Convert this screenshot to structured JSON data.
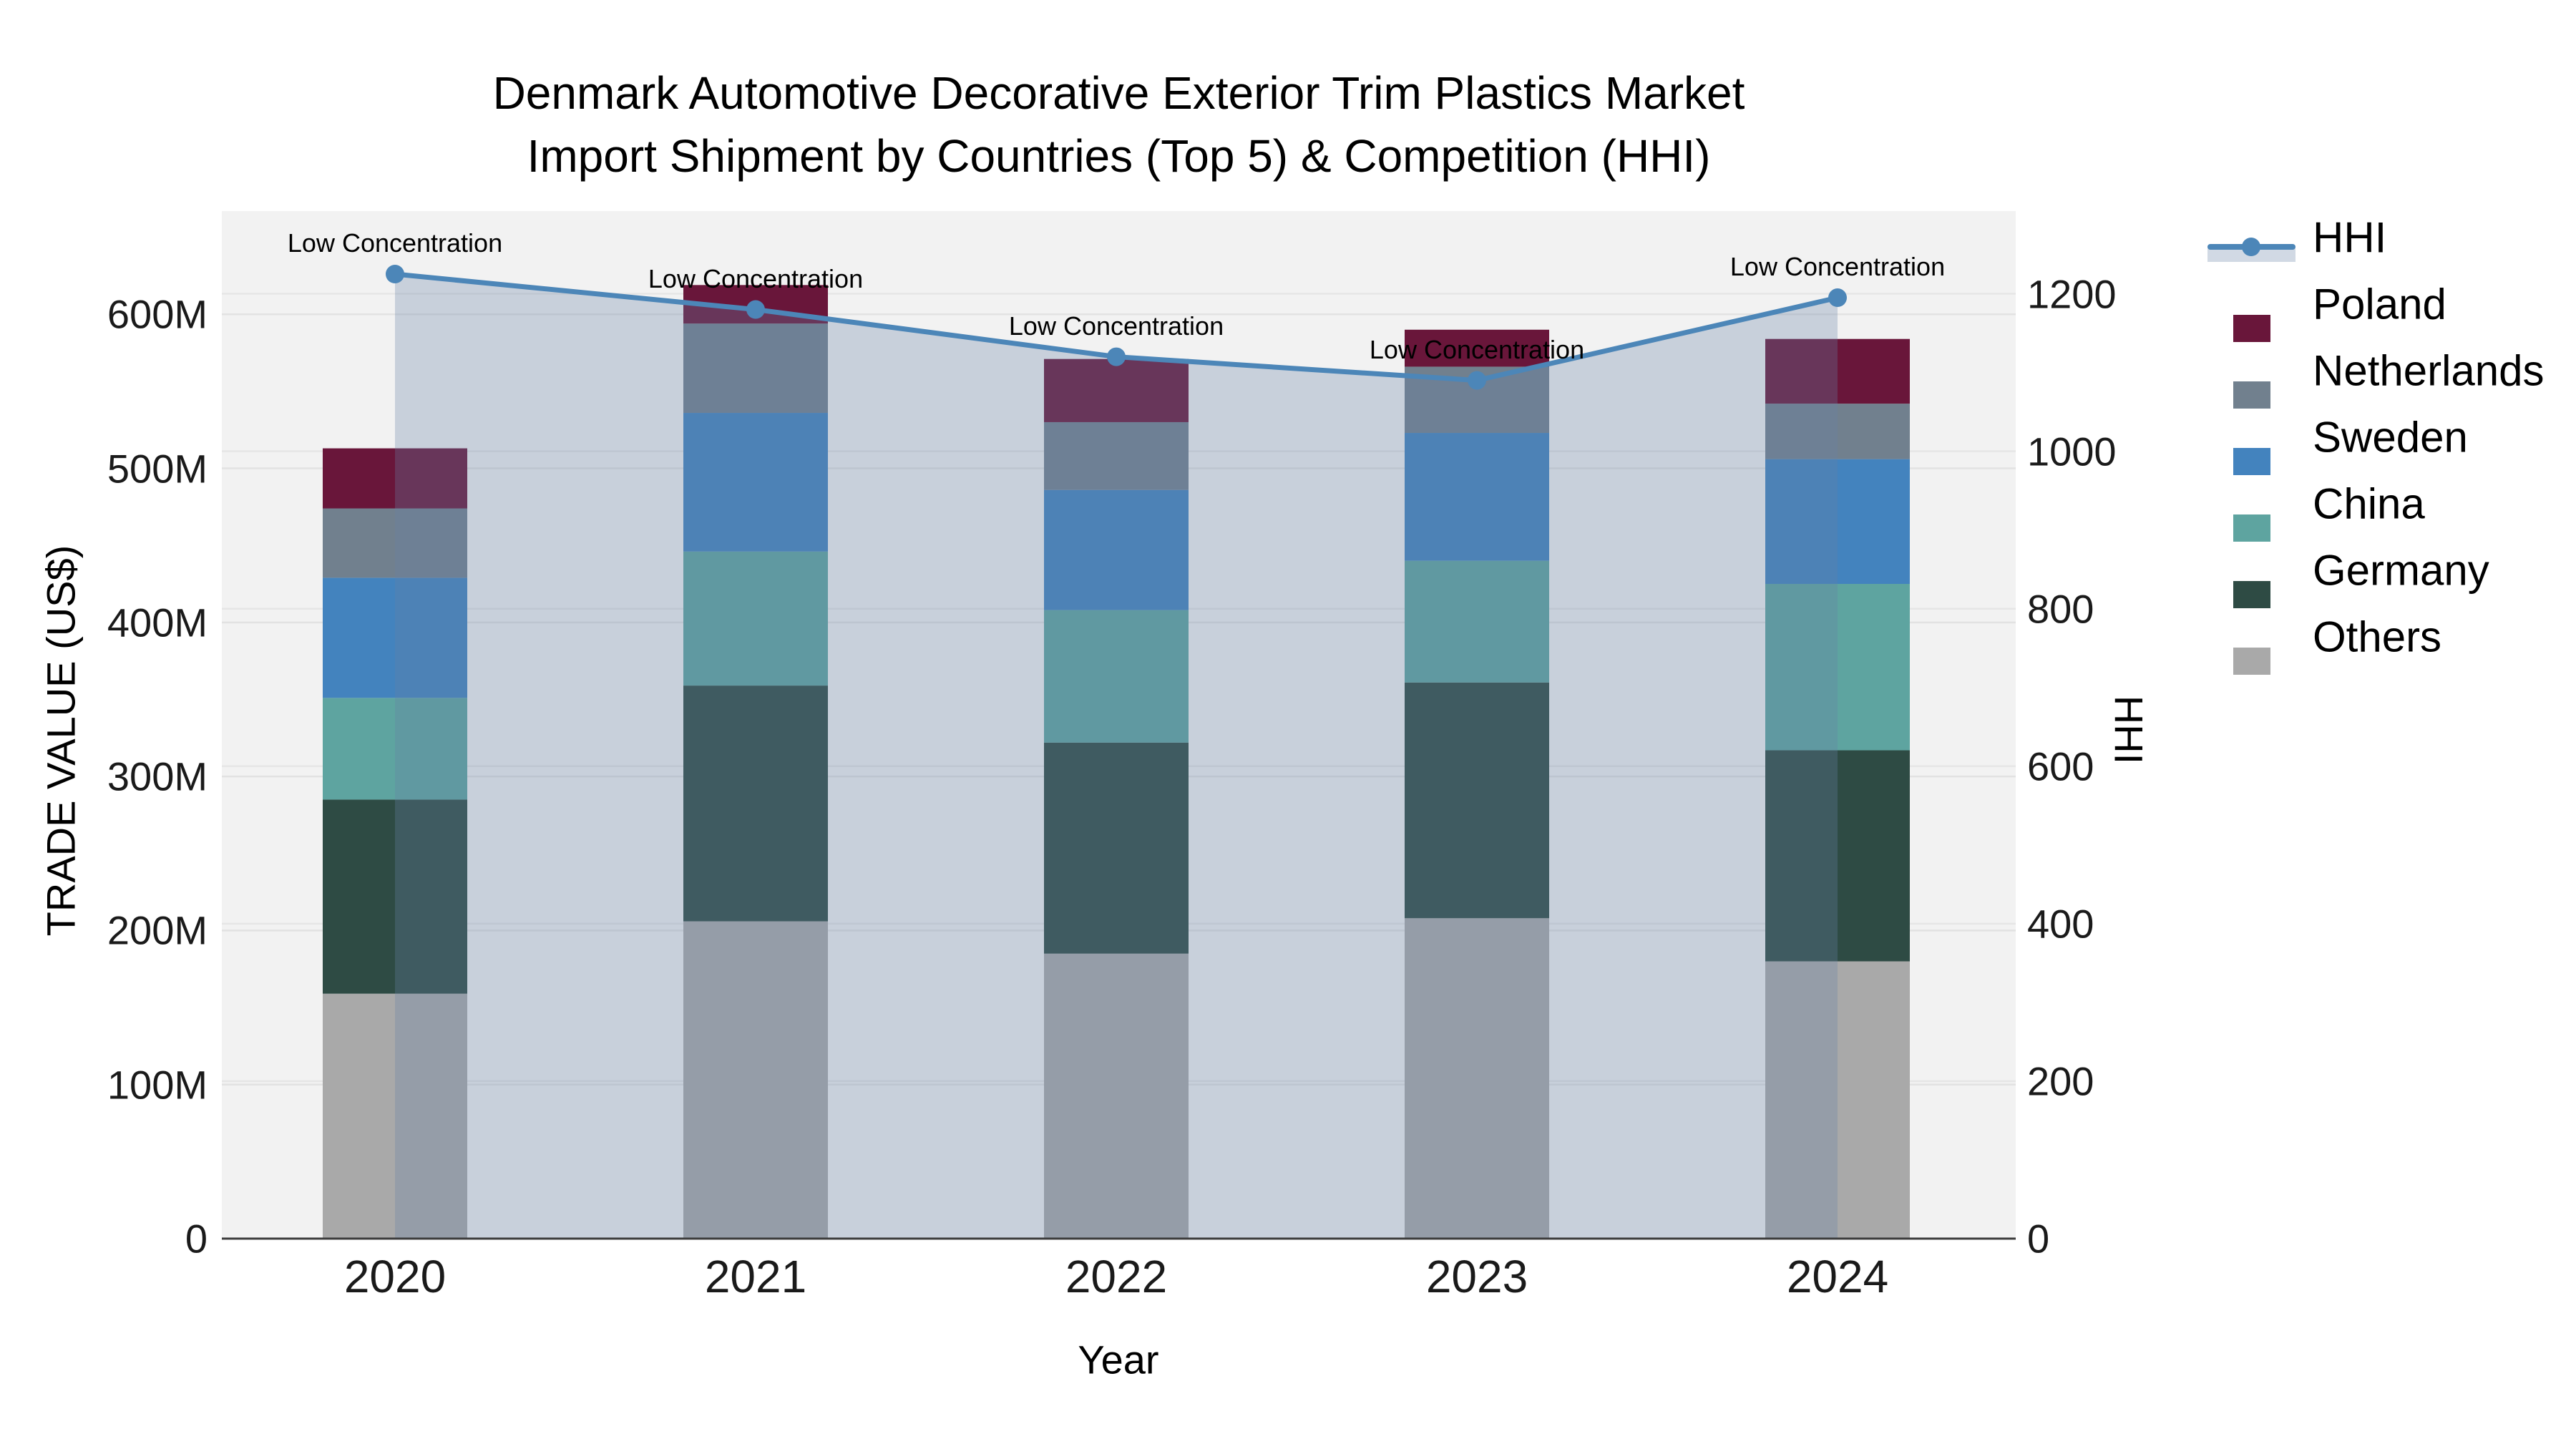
{
  "title": {
    "line1": "Denmark Automotive Decorative Exterior Trim Plastics Market",
    "line2": "Import Shipment by Countries (Top 5) & Competition (HHI)"
  },
  "legend": {
    "items": [
      {
        "label": "HHI",
        "type": "line",
        "color": "#4C86B8"
      },
      {
        "label": "Poland",
        "type": "swatch",
        "color": "#69163A"
      },
      {
        "label": "Netherlands",
        "type": "swatch",
        "color": "#71808E"
      },
      {
        "label": "Sweden",
        "type": "swatch",
        "color": "#4383BE"
      },
      {
        "label": "China",
        "type": "swatch",
        "color": "#5EA4A0"
      },
      {
        "label": "Germany",
        "type": "swatch",
        "color": "#2E4B44"
      },
      {
        "label": "Others",
        "type": "swatch",
        "color": "#A9A9A9"
      }
    ]
  },
  "chart_data": {
    "type": "stacked-bar+line",
    "title": "Denmark Automotive Decorative Exterior Trim Plastics Market Import Shipment by Countries (Top 5) & Competition (HHI)",
    "xlabel": "Year",
    "ylabel_left": "TRADE VALUE (US$)",
    "ylabel_right": "HHI",
    "categories": [
      "2020",
      "2021",
      "2022",
      "2023",
      "2024"
    ],
    "series": [
      {
        "name": "Others",
        "color": "#A9A9A9",
        "values": [
          159,
          206,
          185,
          208,
          180
        ]
      },
      {
        "name": "Germany",
        "color": "#2E4B44",
        "values": [
          126,
          153,
          137,
          153,
          137
        ]
      },
      {
        "name": "China",
        "color": "#5EA4A0",
        "values": [
          66,
          87,
          86,
          79,
          108
        ]
      },
      {
        "name": "Sweden",
        "color": "#4383BE",
        "values": [
          78,
          90,
          78,
          83,
          81
        ]
      },
      {
        "name": "Netherlands",
        "color": "#71808E",
        "values": [
          45,
          58,
          44,
          43,
          36
        ]
      },
      {
        "name": "Poland",
        "color": "#69163A",
        "values": [
          39,
          25,
          41,
          24,
          42
        ]
      }
    ],
    "stack_totals_M": [
      513,
      619,
      571,
      590,
      584
    ],
    "line": {
      "name": "HHI",
      "axis": "right",
      "color": "#4C86B8",
      "fill_color": "rgba(102,130,167,0.30)",
      "values": [
        1225,
        1180,
        1120,
        1090,
        1195
      ]
    },
    "annotations": [
      {
        "x": "2020",
        "text": "Low Concentration"
      },
      {
        "x": "2021",
        "text": "Low Concentration"
      },
      {
        "x": "2022",
        "text": "Low Concentration"
      },
      {
        "x": "2023",
        "text": "Low Concentration"
      },
      {
        "x": "2024",
        "text": "Low Concentration"
      }
    ],
    "ylim_left_M": [
      0,
      667
    ],
    "ylim_right": [
      0,
      1305
    ],
    "yticks_left": {
      "labels": [
        "0",
        "100M",
        "200M",
        "300M",
        "400M",
        "500M",
        "600M"
      ],
      "values": [
        0,
        100,
        200,
        300,
        400,
        500,
        600
      ]
    },
    "yticks_right": {
      "labels": [
        "0",
        "200",
        "400",
        "600",
        "800",
        "1000",
        "1200"
      ],
      "values": [
        0,
        200,
        400,
        600,
        800,
        1000,
        1200
      ]
    },
    "grid": true,
    "plot_bg": "#F2F2F2",
    "legend_position": "right"
  }
}
